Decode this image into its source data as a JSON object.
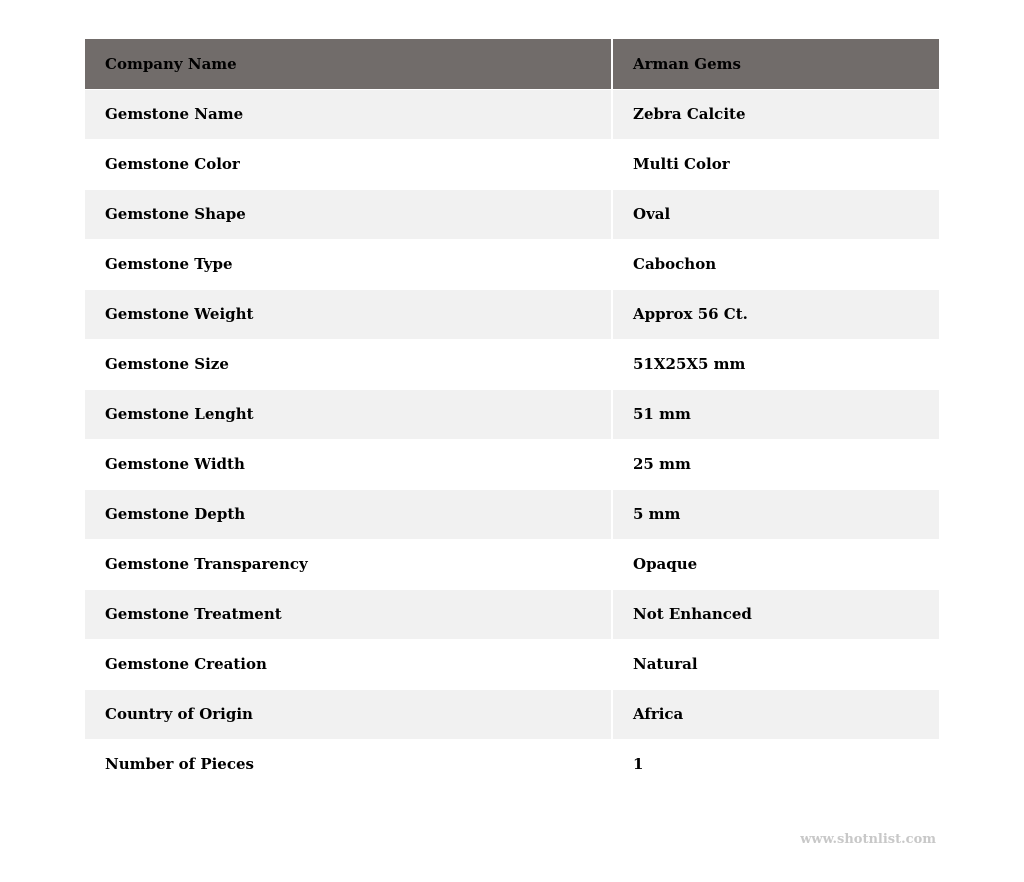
{
  "header": {
    "label": "Company Name",
    "value": "Arman Gems"
  },
  "rows": [
    {
      "label": "Gemstone Name",
      "value": "Zebra Calcite"
    },
    {
      "label": "Gemstone Color",
      "value": "Multi Color"
    },
    {
      "label": "Gemstone Shape",
      "value": "Oval"
    },
    {
      "label": "Gemstone Type",
      "value": "Cabochon"
    },
    {
      "label": "Gemstone Weight",
      "value": "Approx 56 Ct."
    },
    {
      "label": "Gemstone Size",
      "value": "51X25X5 mm"
    },
    {
      "label": "Gemstone Lenght",
      "value": "51 mm"
    },
    {
      "label": "Gemstone Width",
      "value": "25 mm"
    },
    {
      "label": "Gemstone Depth",
      "value": "5 mm"
    },
    {
      "label": "Gemstone Transparency",
      "value": "Opaque"
    },
    {
      "label": "Gemstone Treatment",
      "value": "Not Enhanced"
    },
    {
      "label": "Gemstone Creation",
      "value": "Natural"
    },
    {
      "label": "Country of Origin",
      "value": "Africa"
    },
    {
      "label": "Number of Pieces",
      "value": "1"
    }
  ],
  "watermark": "www.shotnlist.com",
  "colors": {
    "header_bg": "#716c6a",
    "stripe_bg": "#f1f1f1",
    "watermark": "#c8c8c8"
  }
}
